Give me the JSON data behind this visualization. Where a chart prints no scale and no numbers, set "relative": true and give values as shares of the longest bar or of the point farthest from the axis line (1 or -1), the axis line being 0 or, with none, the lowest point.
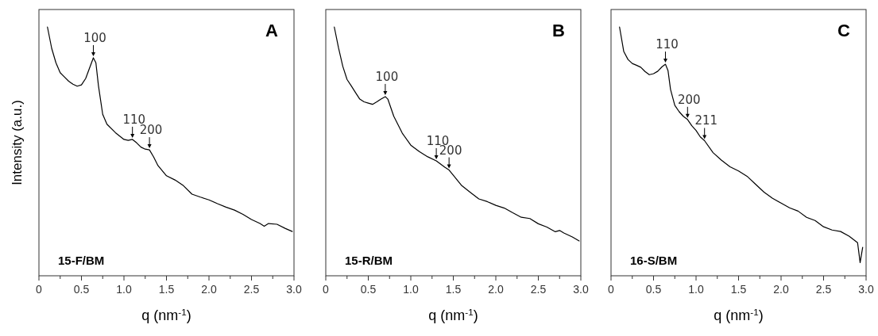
{
  "chart_data": [
    {
      "type": "line",
      "ylabel": "Intensity (a.u.)",
      "xlabel": "q (nm$^{-1}$)",
      "relative": true,
      "xlim": [
        0,
        3
      ],
      "xticks": [
        0,
        {
          "value": 0.25,
          "label": null
        },
        0.5,
        {
          "value": 0.75,
          "label": null
        },
        {
          "value": 1,
          "label": "1.0"
        },
        {
          "value": 1.25,
          "label": null
        },
        1.5,
        {
          "value": 1.75,
          "label": null
        },
        {
          "value": 2,
          "label": "2.0"
        },
        {
          "value": 2.25,
          "label": null
        },
        2.5,
        {
          "value": 2.75,
          "label": null
        },
        {
          "value": 3,
          "label": "3.0"
        }
      ],
      "x": [
        0.1,
        0.15,
        0.2,
        0.25,
        0.3,
        0.35,
        0.4,
        0.45,
        0.5,
        0.55,
        0.6,
        0.64,
        0.67,
        0.7,
        0.75,
        0.8,
        0.9,
        1.0,
        1.05,
        1.1,
        1.15,
        1.2,
        1.25,
        1.3,
        1.35,
        1.4,
        1.5,
        1.6,
        1.7,
        1.8,
        1.9,
        2.0,
        2.1,
        2.2,
        2.3,
        2.4,
        2.5,
        2.6,
        2.65,
        2.7,
        2.8,
        2.9,
        2.98
      ],
      "series": [
        {
          "color": "#000000",
          "values": [
            1,
            0.914,
            0.856,
            0.816,
            0.799,
            0.782,
            0.77,
            0.762,
            0.767,
            0.793,
            0.839,
            0.876,
            0.856,
            0.764,
            0.649,
            0.609,
            0.575,
            0.548,
            0.544,
            0.548,
            0.534,
            0.517,
            0.509,
            0.506,
            0.477,
            0.443,
            0.402,
            0.385,
            0.362,
            0.328,
            0.316,
            0.305,
            0.29,
            0.276,
            0.264,
            0.247,
            0.226,
            0.21,
            0.199,
            0.21,
            0.207,
            0.19,
            0.178
          ]
        }
      ],
      "annotations": [
        "A",
        "15-F/BM",
        {
          "text": "100",
          "x": 0.64,
          "y": 0.876
        },
        {
          "text": "110",
          "x": 1.1,
          "y": 0.548
        },
        {
          "text": "200",
          "x": 1.3,
          "y": 0.506
        }
      ]
    },
    {
      "type": "line",
      "xlabel": "q (nm$^{-1}$)",
      "relative": true,
      "xlim": [
        0,
        3
      ],
      "xticks": [
        0,
        {
          "value": 0.25,
          "label": null
        },
        0.5,
        {
          "value": 0.75,
          "label": null
        },
        {
          "value": 1,
          "label": "1.0"
        },
        {
          "value": 1.25,
          "label": null
        },
        1.5,
        {
          "value": 1.75,
          "label": null
        },
        {
          "value": 2,
          "label": "2.0"
        },
        {
          "value": 2.25,
          "label": null
        },
        2.5,
        {
          "value": 2.75,
          "label": null
        },
        {
          "value": 3,
          "label": "3.0"
        }
      ],
      "x": [
        0.1,
        0.15,
        0.2,
        0.25,
        0.3,
        0.35,
        0.4,
        0.45,
        0.5,
        0.55,
        0.6,
        0.65,
        0.7,
        0.73,
        0.8,
        0.9,
        1.0,
        1.1,
        1.2,
        1.3,
        1.4,
        1.45,
        1.5,
        1.6,
        1.7,
        1.8,
        1.9,
        2.0,
        2.1,
        2.2,
        2.3,
        2.4,
        2.5,
        2.6,
        2.7,
        2.75,
        2.8,
        2.9,
        2.98
      ],
      "series": [
        {
          "color": "#000000",
          "values": [
            1,
            0.916,
            0.842,
            0.789,
            0.763,
            0.736,
            0.71,
            0.699,
            0.694,
            0.689,
            0.699,
            0.71,
            0.72,
            0.71,
            0.641,
            0.573,
            0.525,
            0.499,
            0.478,
            0.462,
            0.436,
            0.425,
            0.404,
            0.362,
            0.335,
            0.309,
            0.298,
            0.283,
            0.272,
            0.253,
            0.235,
            0.23,
            0.209,
            0.196,
            0.177,
            0.182,
            0.172,
            0.156,
            0.14
          ]
        }
      ],
      "annotations": [
        "B",
        "15-R/BM",
        {
          "text": "100",
          "x": 0.7,
          "y": 0.72
        },
        {
          "text": "110",
          "x": 1.3,
          "y": 0.462
        },
        {
          "text": "200",
          "x": 1.45,
          "y": 0.425
        }
      ]
    },
    {
      "type": "line",
      "xlabel": "q (nm$^{-1}$)",
      "relative": true,
      "xlim": [
        0,
        3
      ],
      "xticks": [
        0,
        {
          "value": 0.25,
          "label": null
        },
        0.5,
        {
          "value": 0.75,
          "label": null
        },
        {
          "value": 1,
          "label": "1.0"
        },
        {
          "value": 1.25,
          "label": null
        },
        1.5,
        {
          "value": 1.75,
          "label": null
        },
        {
          "value": 2,
          "label": "2.0"
        },
        {
          "value": 2.25,
          "label": null
        },
        2.5,
        {
          "value": 2.75,
          "label": null
        },
        {
          "value": 3,
          "label": "3.0"
        }
      ],
      "x": [
        0.1,
        0.15,
        0.2,
        0.25,
        0.3,
        0.35,
        0.4,
        0.45,
        0.5,
        0.55,
        0.6,
        0.64,
        0.67,
        0.7,
        0.75,
        0.8,
        0.85,
        0.9,
        0.95,
        1.0,
        1.05,
        1.1,
        1.2,
        1.3,
        1.4,
        1.5,
        1.6,
        1.7,
        1.8,
        1.9,
        2.0,
        2.1,
        2.2,
        2.3,
        2.4,
        2.5,
        2.6,
        2.7,
        2.8,
        2.9,
        2.93,
        2.96
      ],
      "series": [
        {
          "color": "#000000",
          "values": [
            1,
            0.901,
            0.869,
            0.853,
            0.846,
            0.838,
            0.821,
            0.808,
            0.812,
            0.822,
            0.84,
            0.85,
            0.825,
            0.749,
            0.685,
            0.66,
            0.641,
            0.628,
            0.603,
            0.584,
            0.558,
            0.543,
            0.495,
            0.464,
            0.438,
            0.421,
            0.4,
            0.368,
            0.336,
            0.311,
            0.292,
            0.273,
            0.26,
            0.235,
            0.222,
            0.197,
            0.184,
            0.178,
            0.159,
            0.133,
            0.053,
            0.114
          ]
        }
      ],
      "annotations": [
        "C",
        "16-S/BM",
        {
          "text": "110",
          "x": 0.64,
          "y": 0.85
        },
        {
          "text": "200",
          "x": 0.9,
          "y": 0.628
        },
        {
          "text": "211",
          "x": 1.1,
          "y": 0.543
        }
      ]
    }
  ]
}
